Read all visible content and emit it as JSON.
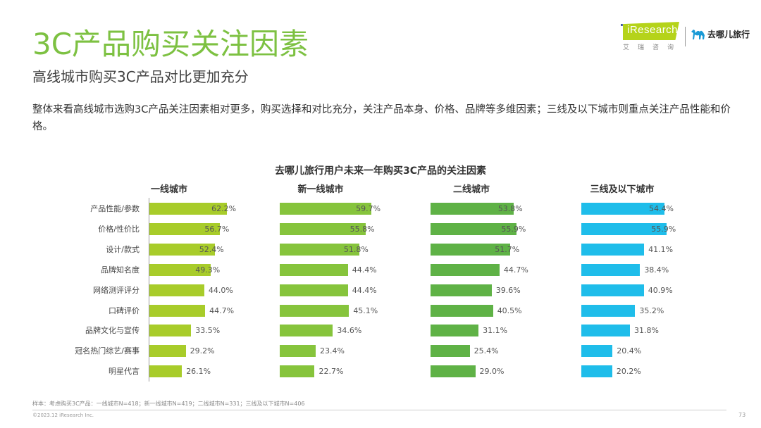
{
  "header": {
    "title": "3C产品购买关注因素",
    "subtitle": "高线城市购买3C产品对比更加充分",
    "description": "整体来看高线城市选购3C产品关注因素相对更多，购买选择和对比充分，关注产品本身、价格、品牌等多维因素；三线及以下城市则重点关注产品性能和价格。"
  },
  "logos": {
    "iresearch_text": "iResearch",
    "iresearch_cn": "艾瑞咨询",
    "qunar_text": "去哪儿旅行"
  },
  "chart_data": {
    "type": "bar",
    "orientation": "horizontal",
    "title": "去哪儿旅行用户未来一年购买3C产品的关注因素",
    "categories": [
      "产品性能/参数",
      "价格/性价比",
      "设计/款式",
      "品牌知名度",
      "网络测评评分",
      "口碑评价",
      "品牌文化与宣传",
      "冠名热门综艺/赛事",
      "明星代言"
    ],
    "unit": "%",
    "series": [
      {
        "name": "一线城市",
        "color": "#a8cc2a",
        "values": [
          62.2,
          56.7,
          52.4,
          49.3,
          44.0,
          44.7,
          33.5,
          29.2,
          26.1
        ],
        "labels": [
          "62.2%",
          "56.7%",
          "52.4%",
          "49.3%",
          "44.0%",
          "44.7%",
          "33.5%",
          "29.2%",
          "26.1%"
        ]
      },
      {
        "name": "新一线城市",
        "color": "#86c43c",
        "values": [
          59.7,
          55.8,
          51.8,
          44.4,
          44.4,
          45.1,
          34.6,
          23.4,
          22.7
        ],
        "labels": [
          "59.7%",
          "55.8%",
          "51.8%",
          "44.4%",
          "44.4%",
          "45.1%",
          "34.6%",
          "23.4%",
          "22.7%"
        ]
      },
      {
        "name": "二线城市",
        "color": "#5fb246",
        "values": [
          53.8,
          55.9,
          51.7,
          44.7,
          39.6,
          40.5,
          31.1,
          25.4,
          29.0
        ],
        "labels": [
          "53.8%",
          "55.9%",
          "51.7%",
          "44.7%",
          "39.6%",
          "40.5%",
          "31.1%",
          "25.4%",
          "29.0%"
        ]
      },
      {
        "name": "三线及以下城市",
        "color": "#1fbdea",
        "values": [
          54.4,
          55.9,
          41.1,
          38.4,
          40.9,
          35.2,
          31.8,
          20.4,
          20.2
        ],
        "labels": [
          "54.4%",
          "55.9%",
          "41.1%",
          "38.4%",
          "40.9%",
          "35.2%",
          "31.8%",
          "20.4%",
          "20.2%"
        ]
      }
    ]
  },
  "footer": {
    "sample_note": "样本：考虑购买3C产品：一线城市N=418；新一线城市N=419；二线城市N=331；三线及以下城市N=406",
    "copyright": "©2023.12 iResearch Inc.",
    "page_number": "73"
  }
}
